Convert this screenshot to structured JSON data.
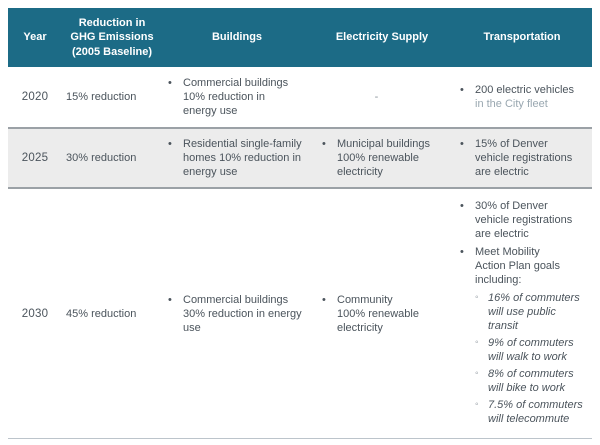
{
  "colors": {
    "header_bg": "#1c6b86",
    "header_text": "#ffffff",
    "alt_row_bg": "#ececec",
    "body_text": "#4b545c",
    "muted_text": "#99a7b0",
    "divider": "#9ba1a6"
  },
  "header": {
    "year": "Year",
    "reduction": "Reduction in\nGHG Emissions\n(2005 Baseline)",
    "buildings": "Buildings",
    "electricity": "Electricity Supply",
    "transportation": "Transportation"
  },
  "rows": {
    "r2020": {
      "year": "2020",
      "reduction": "15% reduction",
      "buildings_item": "Commercial buildings\n10% reduction in\nenergy use",
      "electricity_dash": "-",
      "transportation_main": "200 electric vehicles",
      "transportation_muted": "in the City fleet"
    },
    "r2025": {
      "year": "2025",
      "reduction": "30% reduction",
      "buildings_item": "Residential single-family\nhomes 10% reduction in\nenergy use",
      "electricity_item": "Municipal buildings\n100% renewable\nelectricity",
      "transportation_item": "15% of Denver\nvehicle registrations\nare electric"
    },
    "r2030": {
      "year": "2030",
      "reduction": "45% reduction",
      "buildings_item": "Commercial buildings\n30% reduction in energy\nuse",
      "electricity_item": "Community\n100% renewable\nelectricity",
      "transportation_item1": "30% of Denver\nvehicle registrations\nare electric",
      "transportation_item2": "Meet Mobility\nAction Plan goals\nincluding:",
      "sub_items": [
        "16% of commuters\nwill use public\ntransit",
        "9% of commuters\nwill walk to work",
        "8% of commuters\nwill bike to work",
        "7.5% of commuters\nwill telecommute"
      ]
    }
  },
  "glyphs": {
    "bullet": "•",
    "sub_bullet": "◦"
  }
}
